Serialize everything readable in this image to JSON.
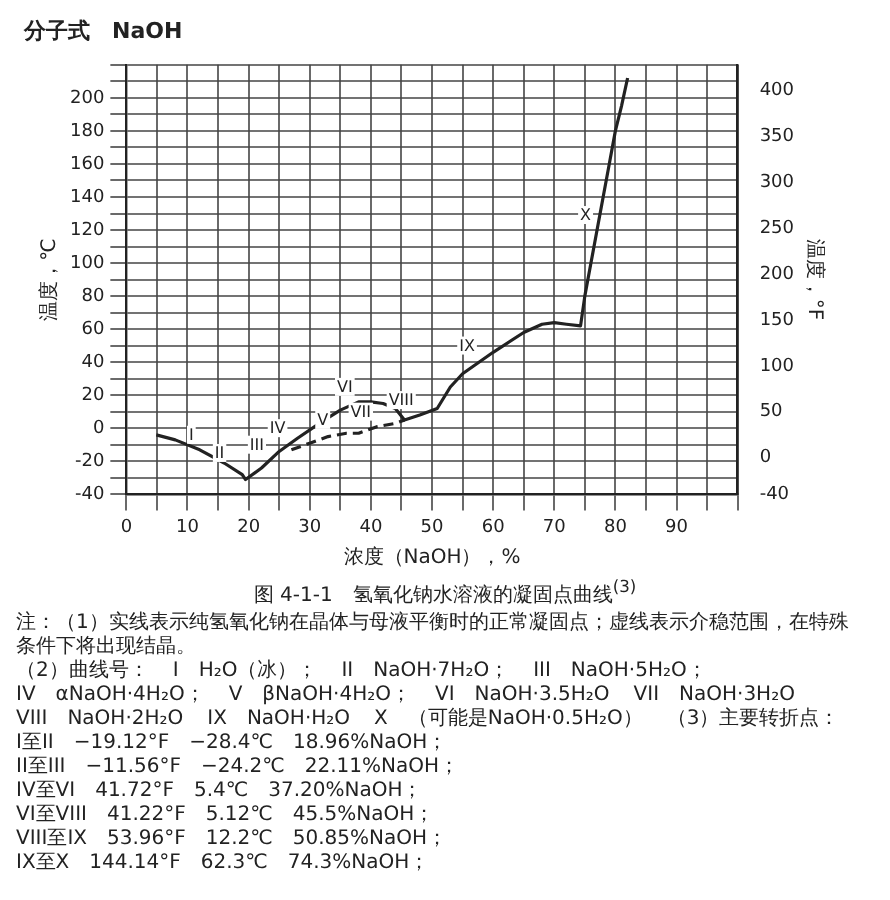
{
  "chart_data": {
    "type": "line",
    "title": "图 4-1-1　氢氧化钠水溶液的凝固点曲线$^{(3)}$",
    "subtitle": "分子式　NaOH",
    "xlabel": "浓度（NaOH），%",
    "ylabel": "温度，℃",
    "y2label": "温度，°F",
    "series": [
      {
        "color": "#222222",
        "line_style": "solid",
        "x": [
          4.9,
          8,
          12,
          16,
          18.96,
          19.5,
          22.11,
          25,
          28,
          32,
          35,
          38,
          40,
          42,
          44,
          45.5,
          48,
          50.85,
          53,
          55,
          60,
          65,
          68,
          70,
          72,
          74.3,
          75,
          76,
          77,
          78,
          79,
          80,
          81,
          82
        ],
        "values": [
          -4,
          -7,
          -13,
          -21,
          -28,
          -31,
          -24,
          -14,
          -6,
          4,
          11,
          16,
          16,
          15,
          12,
          5,
          8,
          12,
          25,
          33,
          46,
          58,
          63,
          64,
          63,
          62,
          80,
          100,
          120,
          140,
          160,
          180,
          195,
          212
        ]
      },
      {
        "color": "#222222",
        "line_style": "dashed",
        "x": [
          27,
          30,
          33,
          36,
          38,
          41,
          44,
          45.5
        ],
        "values": [
          -13,
          -9,
          -5,
          -3,
          -3,
          1,
          3,
          5
        ]
      }
    ],
    "xlim": [
      0,
      100
    ],
    "xticks": [
      0,
      {
        "value": 5,
        "label": null
      },
      10,
      {
        "value": 15,
        "label": null
      },
      20,
      {
        "value": 25,
        "label": null
      },
      30,
      {
        "value": 35,
        "label": null
      },
      40,
      {
        "value": 45,
        "label": null
      },
      50,
      {
        "value": 55,
        "label": null
      },
      60,
      {
        "value": 65,
        "label": null
      },
      70,
      {
        "value": 75,
        "label": null
      },
      80,
      {
        "value": 85,
        "label": null
      },
      90,
      {
        "value": 95,
        "label": null
      },
      {
        "value": 100,
        "label": null
      }
    ],
    "ylim": [
      -40,
      220
    ],
    "yticks": [
      -40,
      {
        "value": -30,
        "label": null
      },
      -20,
      {
        "value": -10,
        "label": null
      },
      0,
      {
        "value": 10,
        "label": null
      },
      20,
      {
        "value": 30,
        "label": null
      },
      40,
      {
        "value": 50,
        "label": null
      },
      60,
      {
        "value": 70,
        "label": null
      },
      80,
      {
        "value": 90,
        "label": null
      },
      100,
      {
        "value": 110,
        "label": null
      },
      120,
      {
        "value": 130,
        "label": null
      },
      140,
      {
        "value": 150,
        "label": null
      },
      160,
      {
        "value": 170,
        "label": null
      },
      180,
      {
        "value": 190,
        "label": null
      },
      200,
      {
        "value": 210,
        "label": null
      },
      {
        "value": 220,
        "label": null
      }
    ],
    "y2lim": [
      -40,
      428
    ],
    "y2ticks": [
      -40,
      0,
      50,
      100,
      150,
      200,
      250,
      300,
      350,
      400
    ],
    "grid": true,
    "marker": "none",
    "annotations": [
      {
        "text": "I",
        "x": 12,
        "y": -13
      },
      {
        "text": "II",
        "x": 17,
        "y": -24
      },
      {
        "text": "III",
        "x": 23.5,
        "y": -19
      },
      {
        "text": "IV",
        "x": 27,
        "y": -9
      },
      {
        "text": "V",
        "x": 34,
        "y": -4
      },
      {
        "text": "VI",
        "x": 38,
        "y": 16
      },
      {
        "text": "VII",
        "x": 41,
        "y": 1
      },
      {
        "text": "VIII",
        "x": 48,
        "y": 8
      },
      {
        "text": "IX",
        "x": 58,
        "y": 41
      },
      {
        "text": "X",
        "x": 77,
        "y": 120
      },
      "注：（1）实线表示纯氢氧化钠在晶体与母液平衡时的正常凝固点；虚线表示介稳范围，在特殊条件下将出现结晶。",
      "（2）曲线号：",
      "I　H₂O（冰）；",
      "II　NaOH·7H₂O；",
      "III　NaOH·5H₂O；",
      "IV　αNaOH·4H₂O；",
      "V　βNaOH·4H₂O；",
      "VI　NaOH·3.5H₂O",
      "VII　NaOH·3H₂O",
      "VIII　NaOH·2H₂O",
      "IX　NaOH·H₂O",
      "X　（可能是NaOH·0.5H₂O）",
      "（3）主要转折点：",
      "I至II　−19.12°F　−28.4℃　18.96%NaOH；",
      "II至III　−11.56°F　−24.2℃　22.11%NaOH；",
      "IV至VI　41.72°F　5.4℃　37.20%NaOH；",
      "VI至VIII　41.22°F　5.12℃　45.5%NaOH；",
      "VIII至IX　53.96°F　12.2℃　50.85%NaOH；",
      "IX至X　144.14°F　62.3℃　74.3%NaOH；"
    ]
  }
}
